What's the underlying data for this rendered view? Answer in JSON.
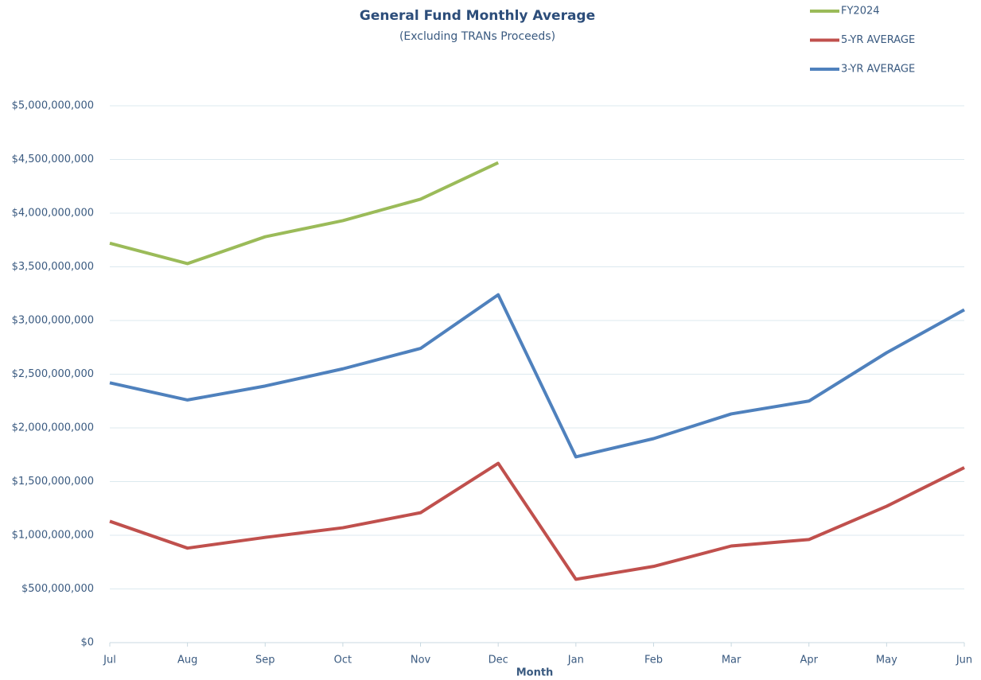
{
  "chart_data": {
    "type": "line",
    "title": "General Fund Monthly Average",
    "subtitle": "(Excluding TRANs Proceeds)",
    "x_label": "Month",
    "categories": [
      "Jul",
      "Aug",
      "Sep",
      "Oct",
      "Nov",
      "Dec",
      "Jan",
      "Feb",
      "Mar",
      "Apr",
      "May",
      "Jun"
    ],
    "series": [
      {
        "name": "FY2024",
        "color": "#9bbb59",
        "values": [
          3720000000,
          3530000000,
          3780000000,
          3930000000,
          4130000000,
          4470000000,
          null,
          null,
          null,
          null,
          null,
          null
        ]
      },
      {
        "name": "5-YR AVERAGE",
        "color": "#c0504d",
        "values": [
          1130000000,
          880000000,
          980000000,
          1070000000,
          1210000000,
          1670000000,
          590000000,
          710000000,
          900000000,
          960000000,
          1270000000,
          1630000000
        ]
      },
      {
        "name": "3-YR AVERAGE",
        "color": "#4f81bd",
        "values": [
          2420000000,
          2260000000,
          2390000000,
          2550000000,
          2740000000,
          3240000000,
          1730000000,
          1900000000,
          2130000000,
          2250000000,
          2700000000,
          3100000000
        ]
      }
    ],
    "ylim": [
      0,
      5000000000
    ],
    "yticks": [
      {
        "value": 0,
        "label": "$0"
      },
      {
        "value": 500000000,
        "label": "$500,000,000"
      },
      {
        "value": 1000000000,
        "label": "$1,000,000,000"
      },
      {
        "value": 1500000000,
        "label": "$1,500,000,000"
      },
      {
        "value": 2000000000,
        "label": "$2,000,000,000"
      },
      {
        "value": 2500000000,
        "label": "$2,500,000,000"
      },
      {
        "value": 3000000000,
        "label": "$3,000,000,000"
      },
      {
        "value": 3500000000,
        "label": "$3,500,000,000"
      },
      {
        "value": 4000000000,
        "label": "$4,000,000,000"
      },
      {
        "value": 4500000000,
        "label": "$4,500,000,000"
      },
      {
        "value": 5000000000,
        "label": "$5,000,000,000"
      }
    ],
    "grid": true,
    "legend": "top-right"
  }
}
